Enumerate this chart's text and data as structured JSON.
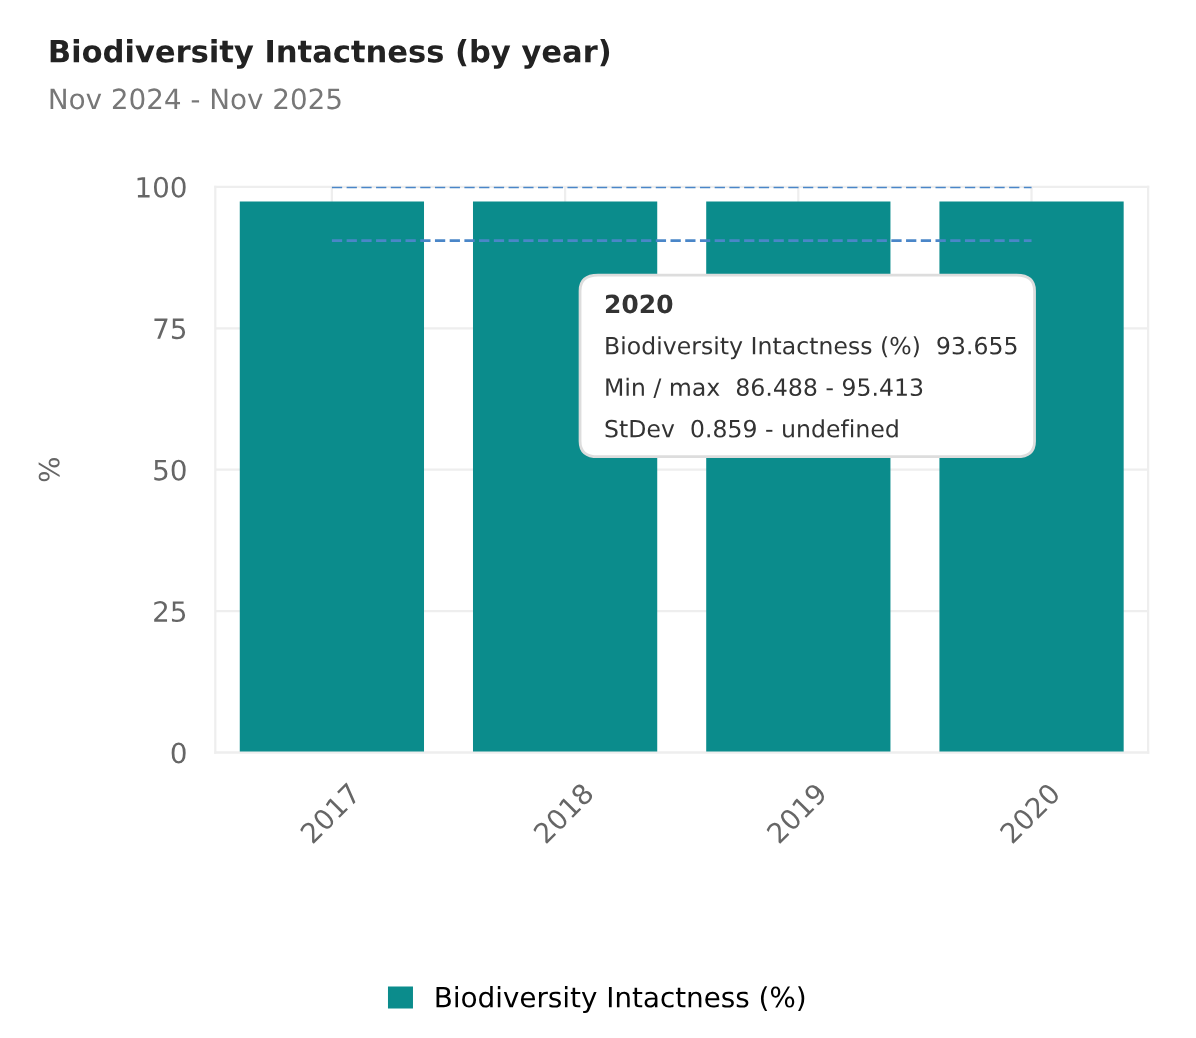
{
  "chart_data": {
    "type": "bar",
    "title": "Biodiversity Intactness (by year)",
    "subtitle": "Nov 2024 - Nov 2025",
    "ylabel": "%",
    "categories": [
      "2017",
      "2018",
      "2019",
      "2020"
    ],
    "series": [
      {
        "name": "Biodiversity Intactness (%)",
        "color": "#0b8c8c",
        "values": [
          97.4,
          97.4,
          97.4,
          97.4
        ]
      },
      {
        "type": "line",
        "color": "#4a86c8",
        "values": [
          100,
          100,
          100,
          100
        ],
        "line_style": "dashed"
      },
      {
        "type": "line",
        "color": "#4a86c8",
        "values": [
          90.5,
          90.5,
          90.5,
          90.5
        ],
        "line_style": "dashed"
      }
    ],
    "ylim": [
      0,
      100
    ],
    "yticks": [
      0,
      25,
      50,
      75,
      100
    ],
    "grid": true,
    "legend": "bottom",
    "annotations": [
      "2020",
      "Biodiversity Intactness (%)  93.655",
      "Min / max  86.488 - 95.413",
      "StDev  0.859 - undefined"
    ]
  }
}
